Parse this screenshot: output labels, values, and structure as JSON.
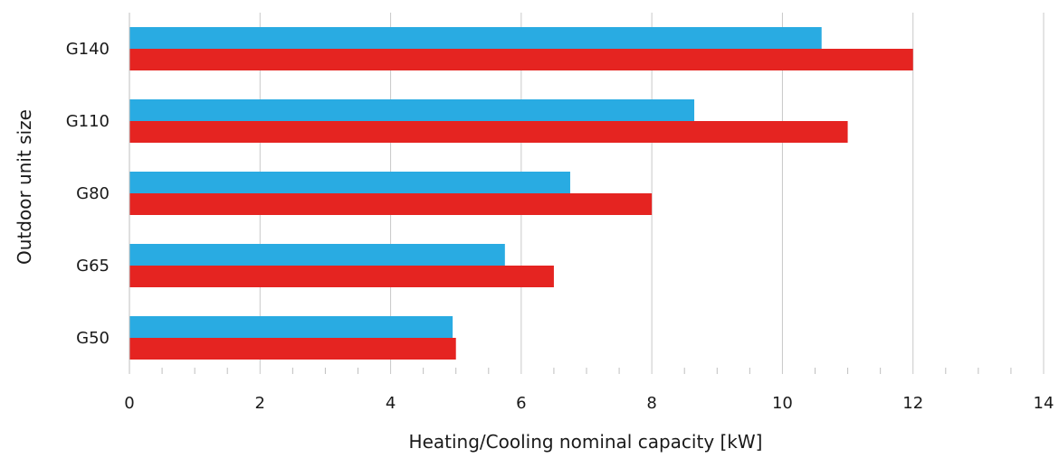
{
  "chart_data": {
    "type": "bar",
    "orientation": "horizontal",
    "title": "",
    "xlabel": "Heating/Cooling nominal capacity [kW]",
    "ylabel": "Outdoor unit size",
    "xlim": [
      0,
      14
    ],
    "x_ticks": [
      0,
      2,
      4,
      6,
      8,
      10,
      12,
      14
    ],
    "x_tick_labels": [
      "0",
      "2",
      "4",
      "6",
      "8",
      "10",
      "12",
      "14"
    ],
    "grid": true,
    "legend": "none",
    "categories": [
      "G140",
      "G110",
      "G80",
      "G65",
      "G50"
    ],
    "series": [
      {
        "color": "#29abe2",
        "values": [
          10.6,
          8.65,
          6.75,
          5.75,
          4.95
        ]
      },
      {
        "color": "#e52421",
        "values": [
          12.0,
          11.0,
          8.0,
          6.5,
          5.0
        ]
      }
    ]
  }
}
